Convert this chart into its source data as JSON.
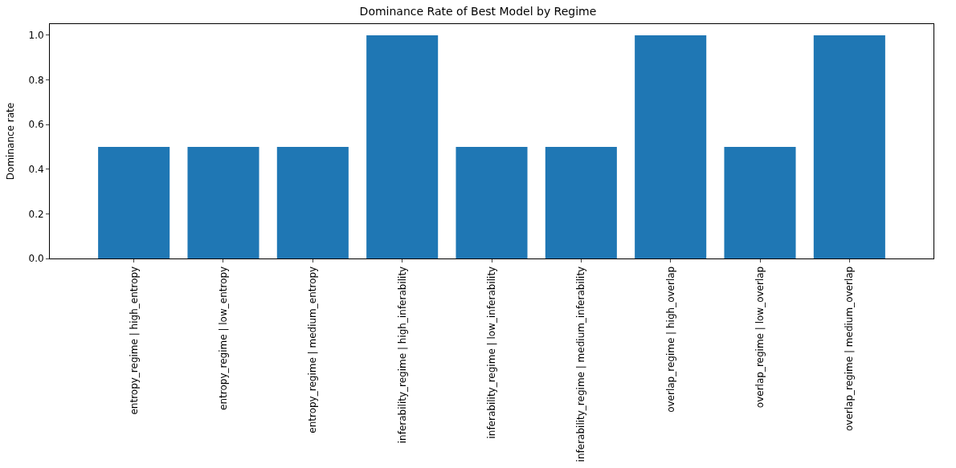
{
  "chart_data": {
    "type": "bar",
    "title": "Dominance Rate of Best Model by Regime",
    "ylabel": "Dominance rate",
    "categories": [
      "entropy_regime | high_entropy",
      "entropy_regime | low_entropy",
      "entropy_regime | medium_entropy",
      "inferability_regime | high_inferability",
      "inferability_regime | low_inferability",
      "inferability_regime | medium_inferability",
      "overlap_regime | high_overlap",
      "overlap_regime | low_overlap",
      "overlap_regime | medium_overlap"
    ],
    "values": [
      0.5,
      0.5,
      0.5,
      1.0,
      0.5,
      0.5,
      1.0,
      0.5,
      1.0
    ],
    "color": "#1f77b4",
    "ylim": [
      0,
      1.05
    ],
    "yticks": [
      {
        "value": 0,
        "label": "0.0"
      },
      {
        "value": 0.2,
        "label": "0.2"
      },
      {
        "value": 0.4,
        "label": "0.4"
      },
      {
        "value": 0.6,
        "label": "0.6"
      },
      {
        "value": 0.8,
        "label": "0.8"
      },
      {
        "value": 1.0,
        "label": "1.0"
      }
    ],
    "legend": false
  }
}
